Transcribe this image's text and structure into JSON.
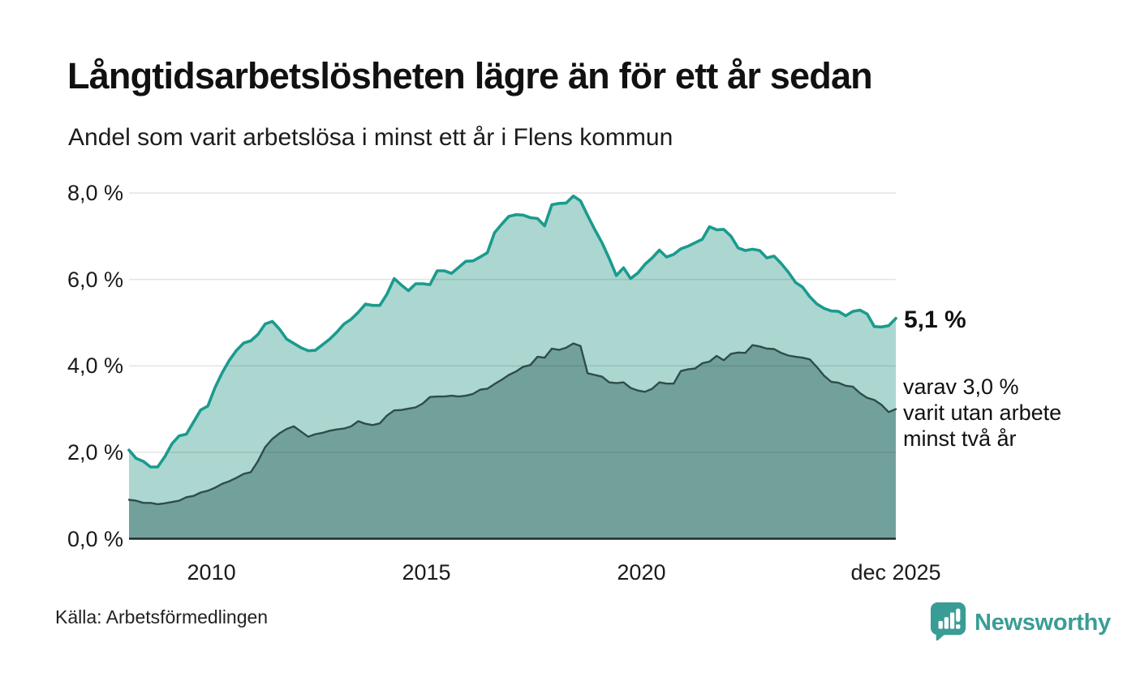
{
  "title": "Långtidsarbetslösheten lägre än för ett år sedan",
  "subtitle": "Andel som varit arbetslösa i minst ett år i Flens kommun",
  "y_axis": {
    "ticks": [
      "8,0 %",
      "6,0 %",
      "4,0 %",
      "2,0 %",
      "0,0 %"
    ],
    "values": [
      8,
      6,
      4,
      2,
      0
    ]
  },
  "x_axis": {
    "ticks": [
      {
        "label": "2010",
        "year": 2010
      },
      {
        "label": "2015",
        "year": 2015
      },
      {
        "label": "2020",
        "year": 2020
      },
      {
        "label": "dec 2025",
        "year": 2025.917
      }
    ]
  },
  "annotations": {
    "latest_total": "5,1 %",
    "breakdown": [
      "varav 3,0 %",
      "varit utan arbete",
      "minst två år"
    ]
  },
  "source": "Källa: Arbetsförmedlingen",
  "branding": {
    "wordmark": "Newsworthy",
    "color": "#3a9d95"
  },
  "colors": {
    "total_line": "#1a9b8e",
    "total_fill": "#abd7d0",
    "two_year_line": "#2f4d48",
    "two_year_fill": "#72a19c",
    "gridline": "rgba(0,0,0,0.10)",
    "axis": "#262626",
    "text": "#1a1a1a"
  },
  "chart_data": {
    "type": "area",
    "title": "Långtidsarbetslösheten lägre än för ett år sedan",
    "subtitle": "Andel som varit arbetslösa i minst ett år i Flens kommun",
    "unit": "%",
    "grid": true,
    "x_start": 2008.083,
    "x_end": 2025.917,
    "x_step_years": 0.1667,
    "ylim": [
      0,
      8.4
    ],
    "y_ticks": [
      0,
      2,
      4,
      6,
      8
    ],
    "series": [
      {
        "name": "Andel arbetslösa minst ett år (totalt)",
        "end_label": "5,1 %",
        "line_color": "#1a9b8e",
        "fill_color": "#abd7d0",
        "values": [
          2.05,
          1.86,
          1.79,
          1.66,
          1.66,
          1.9,
          2.2,
          2.38,
          2.42,
          2.7,
          2.98,
          3.07,
          3.5,
          3.84,
          4.13,
          4.36,
          4.53,
          4.58,
          4.73,
          4.97,
          5.03,
          4.85,
          4.62,
          4.52,
          4.42,
          4.35,
          4.36,
          4.49,
          4.62,
          4.78,
          4.97,
          5.08,
          5.24,
          5.43,
          5.4,
          5.4,
          5.66,
          6.02,
          5.87,
          5.74,
          5.9,
          5.9,
          5.88,
          6.2,
          6.2,
          6.14,
          6.28,
          6.42,
          6.43,
          6.52,
          6.62,
          7.08,
          7.28,
          7.46,
          7.5,
          7.49,
          7.43,
          7.41,
          7.24,
          7.73,
          7.76,
          7.77,
          7.93,
          7.82,
          7.48,
          7.15,
          6.85,
          6.49,
          6.09,
          6.27,
          6.02,
          6.15,
          6.35,
          6.5,
          6.68,
          6.52,
          6.58,
          6.71,
          6.77,
          6.85,
          6.93,
          7.22,
          7.15,
          7.16,
          7.0,
          6.73,
          6.67,
          6.7,
          6.67,
          6.5,
          6.54,
          6.37,
          6.17,
          5.93,
          5.82,
          5.6,
          5.43,
          5.33,
          5.27,
          5.26,
          5.16,
          5.26,
          5.29,
          5.2,
          4.91,
          4.9,
          4.93,
          5.1
        ]
      },
      {
        "name": "varav utan arbete minst två år",
        "end_label": "3,0 %",
        "line_color": "#2f4d48",
        "fill_color": "#72a19c",
        "values": [
          0.9,
          0.88,
          0.83,
          0.83,
          0.8,
          0.82,
          0.85,
          0.88,
          0.96,
          0.99,
          1.07,
          1.11,
          1.18,
          1.27,
          1.33,
          1.41,
          1.5,
          1.54,
          1.8,
          2.12,
          2.31,
          2.44,
          2.54,
          2.6,
          2.48,
          2.36,
          2.42,
          2.45,
          2.5,
          2.53,
          2.55,
          2.6,
          2.72,
          2.66,
          2.63,
          2.67,
          2.85,
          2.97,
          2.98,
          3.01,
          3.04,
          3.13,
          3.28,
          3.29,
          3.29,
          3.31,
          3.29,
          3.31,
          3.35,
          3.45,
          3.47,
          3.58,
          3.68,
          3.79,
          3.87,
          3.98,
          4.02,
          4.21,
          4.19,
          4.4,
          4.37,
          4.42,
          4.52,
          4.46,
          3.83,
          3.79,
          3.75,
          3.62,
          3.6,
          3.62,
          3.49,
          3.43,
          3.4,
          3.47,
          3.62,
          3.59,
          3.59,
          3.88,
          3.92,
          3.94,
          4.06,
          4.1,
          4.23,
          4.13,
          4.28,
          4.31,
          4.3,
          4.48,
          4.45,
          4.4,
          4.39,
          4.3,
          4.24,
          4.21,
          4.19,
          4.15,
          3.97,
          3.77,
          3.63,
          3.61,
          3.54,
          3.52,
          3.37,
          3.26,
          3.21,
          3.1,
          2.93,
          3.0
        ]
      }
    ]
  }
}
